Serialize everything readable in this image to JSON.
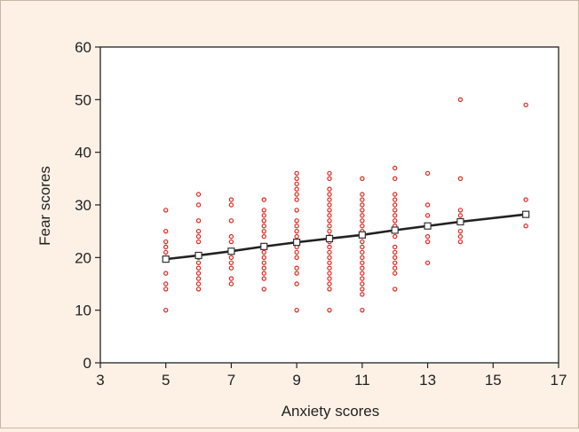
{
  "chart_data": {
    "type": "scatter",
    "title": "",
    "xlabel": "Anxiety scores",
    "ylabel": "Fear scores",
    "xlim": [
      3,
      17
    ],
    "ylim": [
      0,
      60
    ],
    "x_ticks": [
      3,
      5,
      7,
      9,
      11,
      13,
      15,
      17
    ],
    "y_ticks": [
      0,
      10,
      20,
      30,
      40,
      50,
      60
    ],
    "grid": false,
    "legend": "none",
    "colors": {
      "points": "#e0281f",
      "fit_line": "#222222",
      "fit_markers": "#333333",
      "background": "#fdf1e6",
      "plot_area": "#ffffff"
    },
    "series": [
      {
        "kind": "points",
        "points": [
          [
            5,
            10
          ],
          [
            5,
            14
          ],
          [
            5,
            15
          ],
          [
            5,
            17
          ],
          [
            5,
            20
          ],
          [
            5,
            21
          ],
          [
            5,
            22
          ],
          [
            5,
            23
          ],
          [
            5,
            25
          ],
          [
            5,
            29
          ],
          [
            6,
            14
          ],
          [
            6,
            15
          ],
          [
            6,
            16
          ],
          [
            6,
            17
          ],
          [
            6,
            18
          ],
          [
            6,
            19
          ],
          [
            6,
            20
          ],
          [
            6,
            23
          ],
          [
            6,
            24
          ],
          [
            6,
            25
          ],
          [
            6,
            27
          ],
          [
            6,
            30
          ],
          [
            6,
            32
          ],
          [
            7,
            15
          ],
          [
            7,
            16
          ],
          [
            7,
            18
          ],
          [
            7,
            19
          ],
          [
            7,
            20
          ],
          [
            7,
            21
          ],
          [
            7,
            23
          ],
          [
            7,
            24
          ],
          [
            7,
            27
          ],
          [
            7,
            30
          ],
          [
            7,
            31
          ],
          [
            8,
            14
          ],
          [
            8,
            16
          ],
          [
            8,
            17
          ],
          [
            8,
            18
          ],
          [
            8,
            19
          ],
          [
            8,
            20
          ],
          [
            8,
            21
          ],
          [
            8,
            22
          ],
          [
            8,
            24
          ],
          [
            8,
            25
          ],
          [
            8,
            26
          ],
          [
            8,
            27
          ],
          [
            8,
            28
          ],
          [
            8,
            29
          ],
          [
            8,
            31
          ],
          [
            9,
            10
          ],
          [
            9,
            15
          ],
          [
            9,
            17
          ],
          [
            9,
            18
          ],
          [
            9,
            20
          ],
          [
            9,
            21
          ],
          [
            9,
            22
          ],
          [
            9,
            23
          ],
          [
            9,
            24
          ],
          [
            9,
            25
          ],
          [
            9,
            26
          ],
          [
            9,
            27
          ],
          [
            9,
            29
          ],
          [
            9,
            31
          ],
          [
            9,
            32
          ],
          [
            9,
            33
          ],
          [
            9,
            34
          ],
          [
            9,
            35
          ],
          [
            9,
            36
          ],
          [
            10,
            10
          ],
          [
            10,
            14
          ],
          [
            10,
            15
          ],
          [
            10,
            16
          ],
          [
            10,
            17
          ],
          [
            10,
            18
          ],
          [
            10,
            19
          ],
          [
            10,
            20
          ],
          [
            10,
            21
          ],
          [
            10,
            22
          ],
          [
            10,
            23
          ],
          [
            10,
            24
          ],
          [
            10,
            25
          ],
          [
            10,
            26
          ],
          [
            10,
            27
          ],
          [
            10,
            28
          ],
          [
            10,
            29
          ],
          [
            10,
            30
          ],
          [
            10,
            31
          ],
          [
            10,
            32
          ],
          [
            10,
            33
          ],
          [
            10,
            35
          ],
          [
            10,
            36
          ],
          [
            11,
            10
          ],
          [
            11,
            13
          ],
          [
            11,
            14
          ],
          [
            11,
            15
          ],
          [
            11,
            16
          ],
          [
            11,
            17
          ],
          [
            11,
            18
          ],
          [
            11,
            19
          ],
          [
            11,
            20
          ],
          [
            11,
            21
          ],
          [
            11,
            22
          ],
          [
            11,
            23
          ],
          [
            11,
            24
          ],
          [
            11,
            25
          ],
          [
            11,
            26
          ],
          [
            11,
            27
          ],
          [
            11,
            28
          ],
          [
            11,
            29
          ],
          [
            11,
            30
          ],
          [
            11,
            31
          ],
          [
            11,
            32
          ],
          [
            11,
            35
          ],
          [
            12,
            14
          ],
          [
            12,
            17
          ],
          [
            12,
            18
          ],
          [
            12,
            19
          ],
          [
            12,
            20
          ],
          [
            12,
            21
          ],
          [
            12,
            22
          ],
          [
            12,
            24
          ],
          [
            12,
            25
          ],
          [
            12,
            26
          ],
          [
            12,
            27
          ],
          [
            12,
            28
          ],
          [
            12,
            29
          ],
          [
            12,
            30
          ],
          [
            12,
            31
          ],
          [
            12,
            32
          ],
          [
            12,
            35
          ],
          [
            12,
            37
          ],
          [
            13,
            19
          ],
          [
            13,
            23
          ],
          [
            13,
            24
          ],
          [
            13,
            28
          ],
          [
            13,
            30
          ],
          [
            13,
            36
          ],
          [
            14,
            23
          ],
          [
            14,
            24
          ],
          [
            14,
            25
          ],
          [
            14,
            28
          ],
          [
            14,
            29
          ],
          [
            14,
            35
          ],
          [
            14,
            50
          ],
          [
            16,
            26
          ],
          [
            16,
            31
          ],
          [
            16,
            49
          ]
        ]
      },
      {
        "kind": "fit",
        "points": [
          [
            5,
            19.7
          ],
          [
            6,
            20.4
          ],
          [
            7,
            21.2
          ],
          [
            8,
            22.1
          ],
          [
            9,
            22.9
          ],
          [
            10,
            23.6
          ],
          [
            11,
            24.3
          ],
          [
            12,
            25.2
          ],
          [
            13,
            26.0
          ],
          [
            14,
            26.8
          ],
          [
            16,
            28.2
          ]
        ]
      }
    ]
  }
}
